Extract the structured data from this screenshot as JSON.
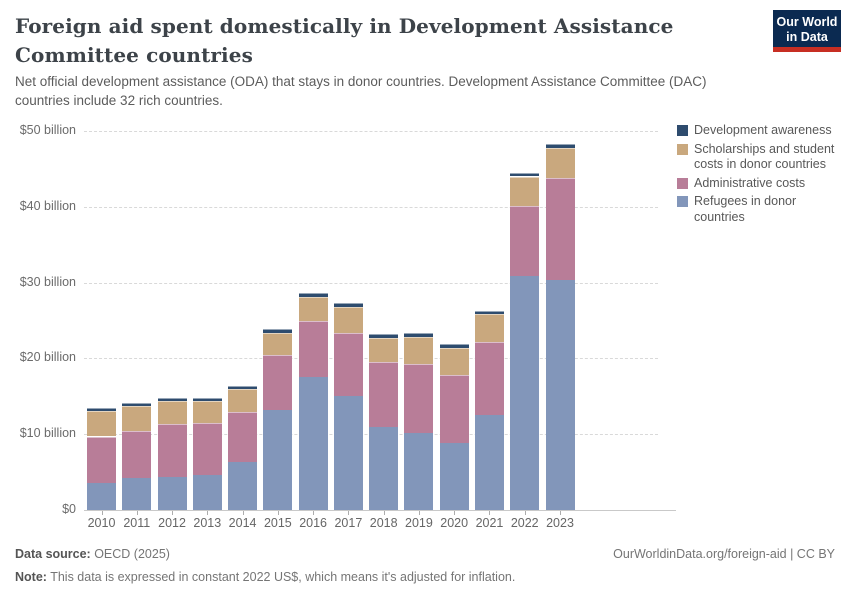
{
  "header": {
    "title": "Foreign aid spent domestically in Development Assistance Committee countries",
    "subtitle": "Net official development assistance (ODA) that stays in donor countries. Development Assistance Committee (DAC) countries include 32 rich countries.",
    "logo": {
      "line1": "Our World",
      "line2": "in Data",
      "bg_color": "#0b2a51",
      "accent_color": "#c72e23"
    }
  },
  "chart_data": {
    "type": "bar",
    "stacked": true,
    "title": "Foreign aid spent domestically in Development Assistance Committee countries",
    "unit": "billion US$ (constant 2022 US$)",
    "categories": [
      "2010",
      "2011",
      "2012",
      "2013",
      "2014",
      "2015",
      "2016",
      "2017",
      "2018",
      "2019",
      "2020",
      "2021",
      "2022",
      "2023"
    ],
    "series": [
      {
        "key": "refugees",
        "name": "Refugees in donor countries",
        "color": "#8296ba",
        "values": [
          3.5,
          4.2,
          4.3,
          4.6,
          6.3,
          13.2,
          17.6,
          15.1,
          10.9,
          10.1,
          8.9,
          12.6,
          30.9,
          30.4
        ]
      },
      {
        "key": "administrative",
        "name": "Administrative costs",
        "color": "#b87d98",
        "values": [
          6.2,
          6.2,
          7.0,
          6.9,
          6.6,
          7.2,
          7.3,
          8.3,
          8.6,
          9.1,
          8.9,
          9.6,
          9.2,
          13.4
        ]
      },
      {
        "key": "scholarships",
        "name": "Scholarships and student costs in donor countries",
        "color": "#c9a87e",
        "values": [
          3.3,
          3.3,
          3.1,
          2.9,
          3.0,
          3.0,
          3.2,
          3.4,
          3.2,
          3.6,
          3.6,
          3.6,
          3.9,
          3.9
        ]
      },
      {
        "key": "awareness",
        "name": "Development awareness",
        "color": "#2e4c6e",
        "values": [
          0.4,
          0.4,
          0.4,
          0.4,
          0.4,
          0.5,
          0.5,
          0.5,
          0.5,
          0.5,
          0.5,
          0.5,
          0.5,
          0.6
        ]
      }
    ],
    "xlabel": "",
    "ylabel": "",
    "ylim": [
      0,
      50
    ],
    "yticks": [
      {
        "value": 0,
        "label": "$0"
      },
      {
        "value": 10,
        "label": "$10 billion"
      },
      {
        "value": 20,
        "label": "$20 billion"
      },
      {
        "value": 30,
        "label": "$30 billion"
      },
      {
        "value": 40,
        "label": "$40 billion"
      },
      {
        "value": 50,
        "label": "$50 billion"
      }
    ],
    "grid": "dashed horizontal",
    "legend_position": "right"
  },
  "footer": {
    "datasource_label": "Data source:",
    "datasource_value": " OECD (2025)",
    "attribution": "OurWorldinData.org/foreign-aid | CC BY",
    "note_label": "Note:",
    "note_value": " This data is expressed in constant 2022 US$, which means it's adjusted for inflation."
  }
}
